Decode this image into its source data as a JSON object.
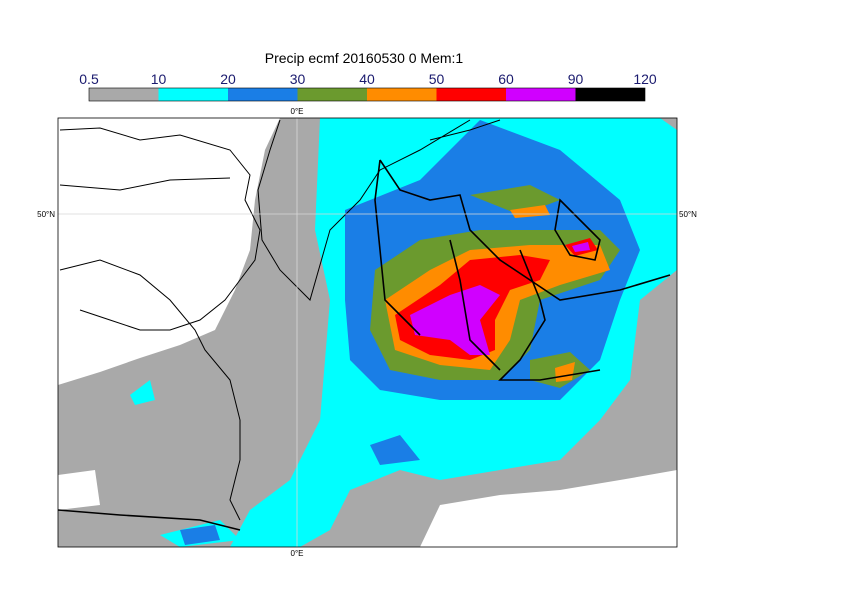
{
  "title": "Precip ecmf 20160530 0 Mem:1",
  "colorbar": {
    "levels": [
      0.5,
      10,
      20,
      30,
      40,
      50,
      60,
      90,
      120
    ],
    "colors": [
      "#a9a9a9",
      "#00ffff",
      "#1a7ee6",
      "#6b9a2e",
      "#ff8c00",
      "#ff0000",
      "#d000ff",
      "#000000"
    ]
  },
  "graticule": {
    "meridian": "0°E",
    "parallel": "50°N"
  }
}
